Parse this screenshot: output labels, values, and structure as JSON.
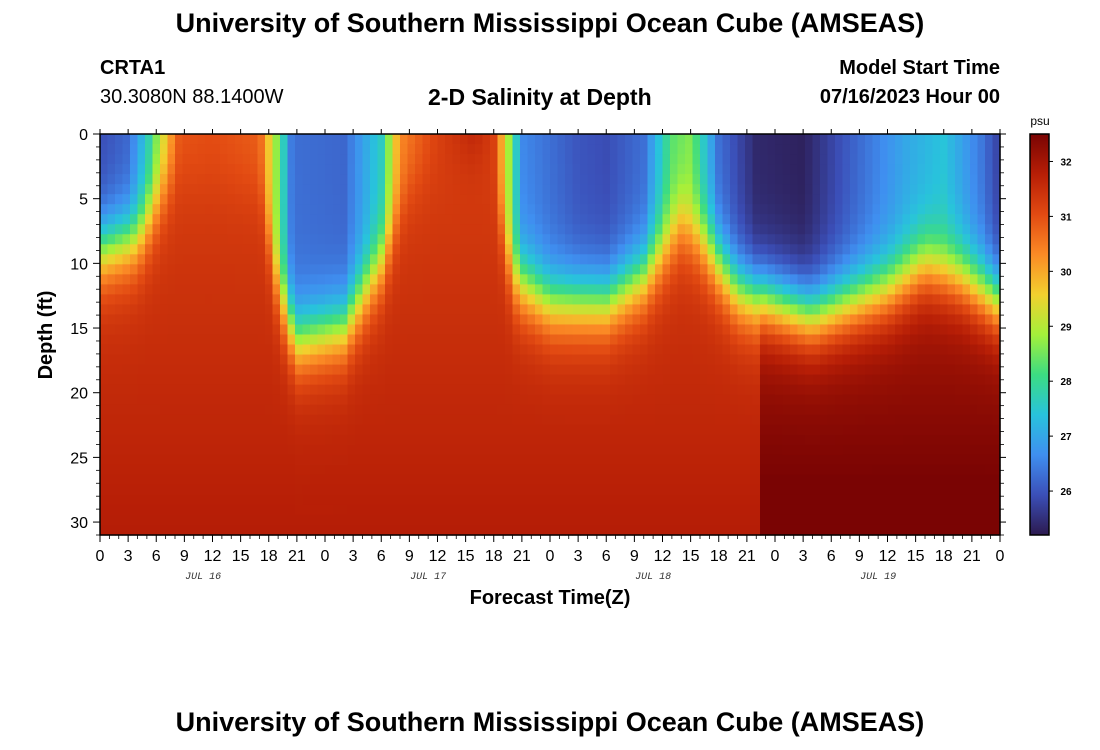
{
  "header": {
    "title": "University of Southern Mississippi Ocean Cube (AMSEAS)",
    "station_id": "CRTA1",
    "station_coords": "30.3080N  88.1400W",
    "chart_title": "2-D Salinity at Depth",
    "start_label": "Model Start Time",
    "start_value": "07/16/2023 Hour 00"
  },
  "footer": {
    "title": "University of Southern Mississippi Ocean Cube (AMSEAS)"
  },
  "chart_data": {
    "type": "heatmap",
    "title": "2-D Salinity at Depth",
    "xlabel": "Forecast Time(Z)",
    "ylabel": "Depth (ft)",
    "x_range_hours": [
      0,
      96
    ],
    "y_range_ft": [
      0,
      31
    ],
    "x_tick_labels": [
      "0",
      "3",
      "6",
      "9",
      "12",
      "15",
      "18",
      "21",
      "0",
      "3",
      "6",
      "9",
      "12",
      "15",
      "18",
      "21",
      "0",
      "3",
      "6",
      "9",
      "12",
      "15",
      "18",
      "21",
      "0",
      "3",
      "6",
      "9",
      "12",
      "15",
      "18",
      "21",
      "0"
    ],
    "x_day_labels": [
      "JUL 16",
      "JUL 17",
      "JUL 18",
      "JUL 19"
    ],
    "y_ticks": [
      0,
      5,
      10,
      15,
      20,
      25,
      30
    ],
    "colorbar": {
      "unit": "psu",
      "range": [
        25.2,
        32.5
      ],
      "ticks": [
        26,
        27,
        28,
        29,
        30,
        31,
        32
      ],
      "colormap": [
        "#2c1a4f",
        "#3b4fb8",
        "#3f8ff0",
        "#28c3dc",
        "#3cdc82",
        "#a4f03a",
        "#f2d02e",
        "#fb8a25",
        "#e24a12",
        "#b71e06",
        "#7a0403"
      ]
    },
    "surface_salinity": [
      {
        "hour": 0,
        "value": 25.9
      },
      {
        "hour": 3,
        "value": 26.2
      },
      {
        "hour": 5,
        "value": 27.5
      },
      {
        "hour": 7,
        "value": 29.5
      },
      {
        "hour": 8.5,
        "value": 30.9
      },
      {
        "hour": 12,
        "value": 31.0
      },
      {
        "hour": 17,
        "value": 30.8
      },
      {
        "hour": 19,
        "value": 28.5
      },
      {
        "hour": 20.5,
        "value": 26.3
      },
      {
        "hour": 26,
        "value": 26.2
      },
      {
        "hour": 30,
        "value": 27.6
      },
      {
        "hour": 32,
        "value": 30.3
      },
      {
        "hour": 36,
        "value": 31.2
      },
      {
        "hour": 40,
        "value": 31.8
      },
      {
        "hour": 42,
        "value": 31.2
      },
      {
        "hour": 43.5,
        "value": 29.0
      },
      {
        "hour": 45,
        "value": 26.6
      },
      {
        "hour": 51,
        "value": 26.0
      },
      {
        "hour": 54,
        "value": 25.9
      },
      {
        "hour": 58,
        "value": 26.3
      },
      {
        "hour": 61,
        "value": 28.3
      },
      {
        "hour": 63,
        "value": 28.6
      },
      {
        "hour": 66,
        "value": 26.3
      },
      {
        "hour": 70,
        "value": 25.4
      },
      {
        "hour": 75,
        "value": 25.3
      },
      {
        "hour": 80,
        "value": 26.1
      },
      {
        "hour": 86,
        "value": 27.0
      },
      {
        "hour": 90,
        "value": 27.4
      },
      {
        "hour": 94,
        "value": 26.4
      },
      {
        "hour": 96,
        "value": 25.7
      }
    ],
    "halocline_depth_ft": [
      {
        "hour": 0,
        "value": 9
      },
      {
        "hour": 4,
        "value": 8
      },
      {
        "hour": 8,
        "value": 3
      },
      {
        "hour": 12,
        "value": 3
      },
      {
        "hour": 17,
        "value": 4
      },
      {
        "hour": 19,
        "value": 12
      },
      {
        "hour": 21,
        "value": 16
      },
      {
        "hour": 26,
        "value": 15
      },
      {
        "hour": 30,
        "value": 10
      },
      {
        "hour": 33,
        "value": 4
      },
      {
        "hour": 36,
        "value": 2
      },
      {
        "hour": 41,
        "value": 1
      },
      {
        "hour": 44,
        "value": 11
      },
      {
        "hour": 48,
        "value": 13
      },
      {
        "hour": 54,
        "value": 13
      },
      {
        "hour": 58,
        "value": 11
      },
      {
        "hour": 62,
        "value": 7
      },
      {
        "hour": 64,
        "value": 8
      },
      {
        "hour": 68,
        "value": 12
      },
      {
        "hour": 76,
        "value": 14
      },
      {
        "hour": 84,
        "value": 12
      },
      {
        "hour": 88,
        "value": 10
      },
      {
        "hour": 92,
        "value": 11
      },
      {
        "hour": 96,
        "value": 13
      }
    ]
  }
}
